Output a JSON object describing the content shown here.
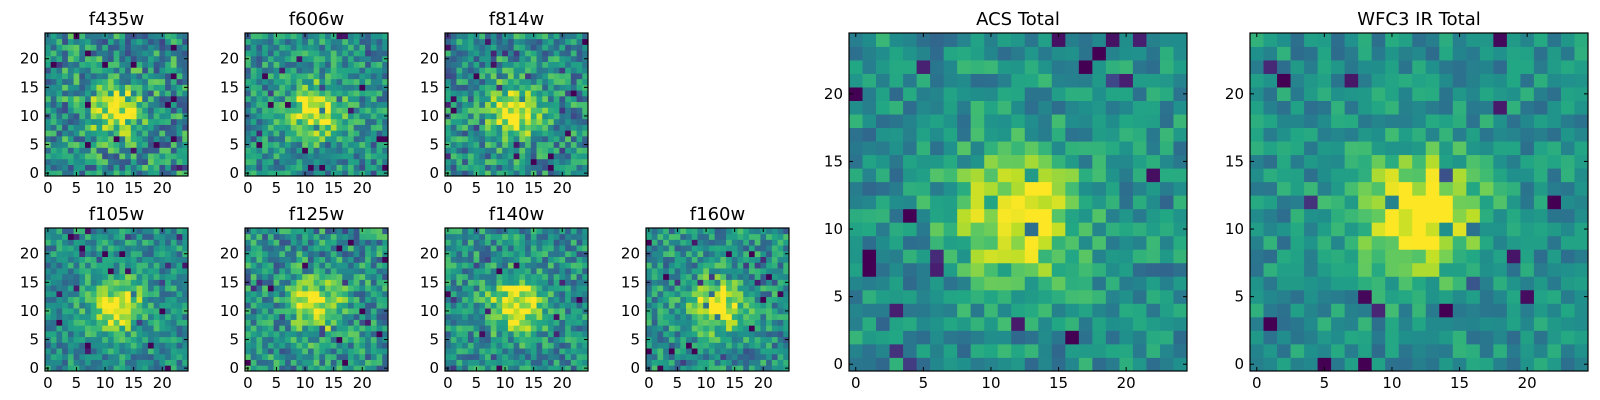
{
  "chart_data": [
    {
      "type": "heatmap",
      "title": "f435w",
      "n": 25,
      "xticks": [
        0,
        5,
        10,
        15,
        20
      ],
      "yticks": [
        0,
        5,
        10,
        15,
        20
      ],
      "colormap": "viridis",
      "center": [
        12,
        11
      ],
      "peak": 0.72,
      "noise": 0.55
    },
    {
      "type": "heatmap",
      "title": "f606w",
      "n": 25,
      "xticks": [
        0,
        5,
        10,
        15,
        20
      ],
      "yticks": [
        0,
        5,
        10,
        15,
        20
      ],
      "colormap": "viridis",
      "center": [
        12,
        11
      ],
      "peak": 0.9,
      "noise": 0.45
    },
    {
      "type": "heatmap",
      "title": "f814w",
      "n": 25,
      "xticks": [
        0,
        5,
        10,
        15,
        20
      ],
      "yticks": [
        0,
        5,
        10,
        15,
        20
      ],
      "colormap": "viridis",
      "center": [
        12,
        11
      ],
      "peak": 0.85,
      "noise": 0.5
    },
    {
      "type": "heatmap",
      "title": "f105w",
      "n": 25,
      "xticks": [
        0,
        5,
        10,
        15,
        20
      ],
      "yticks": [
        0,
        5,
        10,
        15,
        20
      ],
      "colormap": "viridis",
      "center": [
        12,
        11
      ],
      "peak": 0.9,
      "noise": 0.4
    },
    {
      "type": "heatmap",
      "title": "f125w",
      "n": 25,
      "xticks": [
        0,
        5,
        10,
        15,
        20
      ],
      "yticks": [
        0,
        5,
        10,
        15,
        20
      ],
      "colormap": "viridis",
      "center": [
        12,
        11
      ],
      "peak": 0.8,
      "noise": 0.5
    },
    {
      "type": "heatmap",
      "title": "f140w",
      "n": 25,
      "xticks": [
        0,
        5,
        10,
        15,
        20
      ],
      "yticks": [
        0,
        5,
        10,
        15,
        20
      ],
      "colormap": "viridis",
      "center": [
        12,
        11
      ],
      "peak": 0.9,
      "noise": 0.45
    },
    {
      "type": "heatmap",
      "title": "f160w",
      "n": 25,
      "xticks": [
        0,
        5,
        10,
        15,
        20
      ],
      "yticks": [
        0,
        5,
        10,
        15,
        20
      ],
      "colormap": "viridis",
      "center": [
        12,
        11
      ],
      "peak": 0.85,
      "noise": 0.45
    },
    {
      "type": "heatmap",
      "title": "ACS Total",
      "n": 25,
      "xticks": [
        0,
        5,
        10,
        15,
        20
      ],
      "yticks": [
        0,
        5,
        10,
        15,
        20
      ],
      "colormap": "viridis",
      "center": [
        12,
        11
      ],
      "peak": 0.9,
      "noise": 0.35
    },
    {
      "type": "heatmap",
      "title": "WFC3 IR Total",
      "n": 25,
      "xticks": [
        0,
        5,
        10,
        15,
        20
      ],
      "yticks": [
        0,
        5,
        10,
        15,
        20
      ],
      "colormap": "viridis",
      "center": [
        12,
        11
      ],
      "peak": 0.95,
      "noise": 0.3
    }
  ]
}
